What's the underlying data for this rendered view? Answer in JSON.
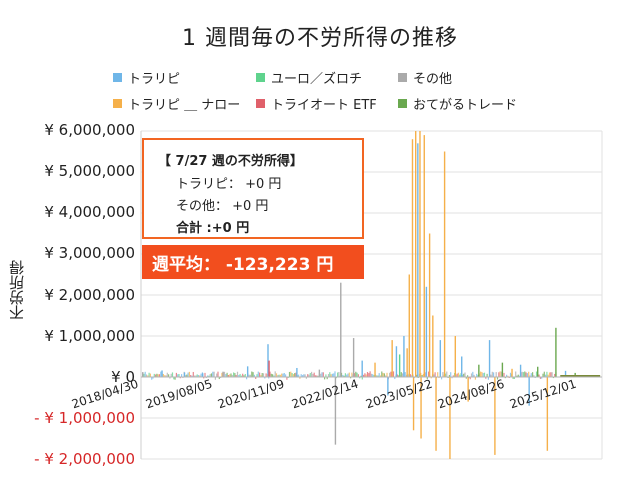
{
  "title": "1 週間毎の不労所得の推移",
  "legend": [
    {
      "name": "トラリピ",
      "color": "#6fb6e8"
    },
    {
      "name": "ユーロ／ズロチ",
      "color": "#5fd38d"
    },
    {
      "name": "その他",
      "color": "#aaaaaa"
    },
    {
      "name": "トラリピ ＿ ナロー",
      "color": "#f5b04a"
    },
    {
      "name": "トライオート ETF",
      "color": "#e0606a"
    },
    {
      "name": "おてがるトレード",
      "color": "#6aa84f"
    }
  ],
  "tooltip": {
    "title": "【 7/27 週の不労所得】",
    "rows": [
      "トラリピ：  +0 円",
      "その他：  +0 円"
    ],
    "total": "合計 :+0 円"
  },
  "average_badge": "週平均：  -123,223 円",
  "chart_data": {
    "type": "bar",
    "stacked": true,
    "ylabel": "不労所得",
    "ylim": [
      -2000000,
      6000000
    ],
    "yticks": [
      {
        "value": 6000000,
        "label": "¥ 6,000,000"
      },
      {
        "value": 5000000,
        "label": "¥ 5,000,000"
      },
      {
        "value": 4000000,
        "label": "¥ 4,000,000"
      },
      {
        "value": 3000000,
        "label": "¥ 3,000,000"
      },
      {
        "value": 2000000,
        "label": "¥ 2,000,000"
      },
      {
        "value": 1000000,
        "label": "¥ 1,000,000"
      },
      {
        "value": 0,
        "label": "¥ 0"
      },
      {
        "value": -1000000,
        "label": "- ¥ 1,000,000"
      },
      {
        "value": -2000000,
        "label": "- ¥ 2,000,000"
      }
    ],
    "xticks": [
      "2018/04/30",
      "2019/08/05",
      "2020/11/09",
      "2022/02/14",
      "2023/05/22",
      "2024/08/26",
      "2025/12/01"
    ],
    "xrange": [
      "2018/04/30",
      "2026/08/01"
    ],
    "grid": true,
    "legend_position": "top",
    "spikes": [
      {
        "date": "2018/05/07",
        "series": "その他",
        "value": 120000
      },
      {
        "date": "2018/09/10",
        "series": "トラリピ",
        "value": 160000
      },
      {
        "date": "2019/02/04",
        "series": "トラリピ",
        "value": 110000
      },
      {
        "date": "2019/06/03",
        "series": "トラリピ",
        "value": 90000
      },
      {
        "date": "2019/10/14",
        "series": "その他",
        "value": 130000
      },
      {
        "date": "2020/03/23",
        "series": "トラリピ",
        "value": 260000
      },
      {
        "date": "2020/08/03",
        "series": "トラリピ",
        "value": 800000
      },
      {
        "date": "2020/08/10",
        "series": "トライオート ETF",
        "value": 400000
      },
      {
        "date": "2021/02/08",
        "series": "トラリピ",
        "value": 220000
      },
      {
        "date": "2021/07/05",
        "series": "その他",
        "value": 180000
      },
      {
        "date": "2021/10/18",
        "series": "その他",
        "value": -1650000
      },
      {
        "date": "2021/11/22",
        "series": "その他",
        "value": 2300000
      },
      {
        "date": "2022/02/14",
        "series": "その他",
        "value": 950000
      },
      {
        "date": "2022/04/11",
        "series": "トラリピ",
        "value": 400000
      },
      {
        "date": "2022/07/04",
        "series": "トラリピ ＿ ナロー",
        "value": 350000
      },
      {
        "date": "2022/09/26",
        "series": "トラリピ",
        "value": -450000
      },
      {
        "date": "2022/10/24",
        "series": "トラリピ ＿ ナロー",
        "value": 900000
      },
      {
        "date": "2022/11/21",
        "series": "トラリピ",
        "value": 750000
      },
      {
        "date": "2022/12/12",
        "series": "ユーロ／ズロチ",
        "value": 550000
      },
      {
        "date": "2023/01/09",
        "series": "トラリピ",
        "value": 1000000
      },
      {
        "date": "2023/01/30",
        "series": "トラリピ ＿ ナロー",
        "value": 700000
      },
      {
        "date": "2023/02/13",
        "series": "トラリピ ＿ ナロー",
        "value": 2500000
      },
      {
        "date": "2023/03/06",
        "series": "トラリピ ＿ ナロー",
        "value": 5800000
      },
      {
        "date": "2023/03/13",
        "series": "トラリピ ＿ ナロー",
        "value": -1300000
      },
      {
        "date": "2023/03/27",
        "series": "トラリピ ＿ ナロー",
        "value": 6000000
      },
      {
        "date": "2023/04/10",
        "series": "トラリピ",
        "value": 5700000
      },
      {
        "date": "2023/04/24",
        "series": "トラリピ ＿ ナロー",
        "value": 6000000
      },
      {
        "date": "2023/05/01",
        "series": "トラリピ ＿ ナロー",
        "value": -1500000
      },
      {
        "date": "2023/05/22",
        "series": "トラリピ ＿ ナロー",
        "value": 5900000
      },
      {
        "date": "2023/06/05",
        "series": "トラリピ",
        "value": 2200000
      },
      {
        "date": "2023/06/26",
        "series": "トラリピ ＿ ナロー",
        "value": 3500000
      },
      {
        "date": "2023/07/17",
        "series": "トラリピ ＿ ナロー",
        "value": 1500000
      },
      {
        "date": "2023/08/07",
        "series": "トラリピ ＿ ナロー",
        "value": -1800000
      },
      {
        "date": "2023/09/04",
        "series": "トラリピ",
        "value": 900000
      },
      {
        "date": "2023/10/02",
        "series": "トラリピ ＿ ナロー",
        "value": 5500000
      },
      {
        "date": "2023/11/06",
        "series": "トラリピ ＿ ナロー",
        "value": -2000000
      },
      {
        "date": "2023/12/11",
        "series": "トラリピ ＿ ナロー",
        "value": 1000000
      },
      {
        "date": "2024/01/22",
        "series": "トラリピ",
        "value": 500000
      },
      {
        "date": "2024/03/04",
        "series": "トラリピ ＿ ナロー",
        "value": -600000
      },
      {
        "date": "2024/05/13",
        "series": "おてがるトレード",
        "value": 300000
      },
      {
        "date": "2024/07/22",
        "series": "トラリピ",
        "value": 900000
      },
      {
        "date": "2024/08/26",
        "series": "トラリピ ＿ ナロー",
        "value": -1900000
      },
      {
        "date": "2024/10/14",
        "series": "おてがるトレード",
        "value": 350000
      },
      {
        "date": "2024/12/16",
        "series": "トラリピ ＿ ナロー",
        "value": 200000
      },
      {
        "date": "2025/02/10",
        "series": "トラリピ",
        "value": 300000
      },
      {
        "date": "2025/04/07",
        "series": "トラリピ",
        "value": -700000
      },
      {
        "date": "2025/06/02",
        "series": "おてがるトレード",
        "value": 250000
      },
      {
        "date": "2025/08/04",
        "series": "トラリピ ＿ ナロー",
        "value": -1800000
      },
      {
        "date": "2025/09/29",
        "series": "おてがるトレード",
        "value": 1200000
      },
      {
        "date": "2025/12/01",
        "series": "トラリピ",
        "value": 150000
      },
      {
        "date": "2026/02/02",
        "series": "おてがるトレード",
        "value": 100000
      }
    ]
  }
}
